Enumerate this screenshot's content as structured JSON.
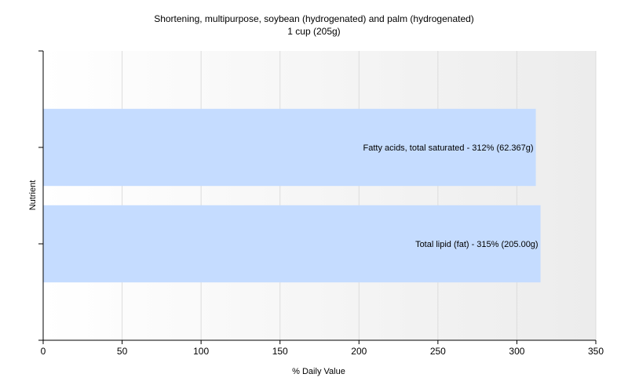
{
  "chart_data": {
    "type": "bar",
    "orientation": "horizontal",
    "title": "Shortening, multipurpose, soybean (hydrogenated) and palm (hydrogenated)",
    "subtitle": "1 cup (205g)",
    "xlabel": "% Daily Value",
    "ylabel": "Nutrient",
    "xlim": [
      0,
      350
    ],
    "xticks": [
      0,
      50,
      100,
      150,
      200,
      250,
      300,
      350
    ],
    "grid": true,
    "categories": [
      "Fatty acids, total saturated",
      "Total lipid (fat)"
    ],
    "values": [
      312,
      315
    ],
    "labels": [
      "Fatty acids, total saturated - 312% (62.367g)",
      "Total lipid (fat) - 315% (205.00g)"
    ],
    "bar_color": "#c5dcff"
  }
}
